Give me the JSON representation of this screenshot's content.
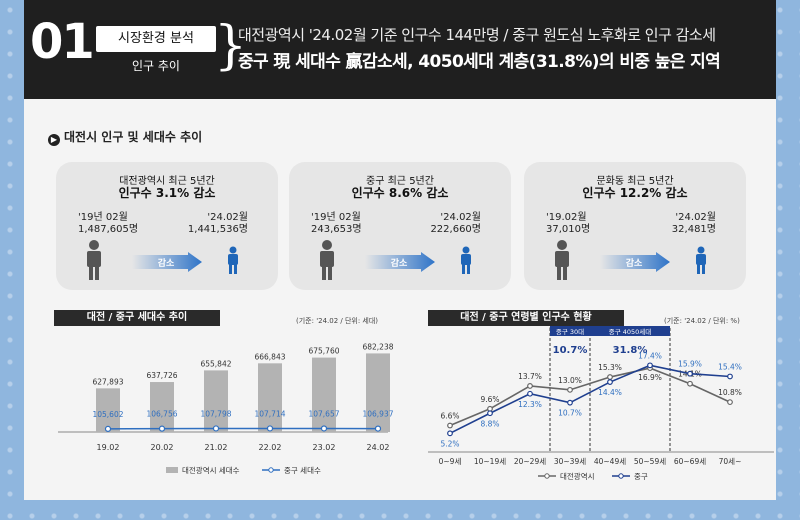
{
  "header": {
    "number": "01",
    "tag": "시장환경 분석",
    "tag_sub": "인구 추이",
    "subtitle": "대전광역시 '24.02월 기준 인구수 144만명 / 중구 원도심 노후화로 인구 감소세",
    "title": "중구 現 세대수 贏감소세, 4050세대 계층(31.8%)의 비중 높은 지역"
  },
  "section": {
    "title": "대전시 인구 및 세대수 추이"
  },
  "boxes": [
    {
      "t1": "대전광역시 최근 5년간",
      "t2": "인구수 3.1% 감소",
      "l1": "'19년 02월",
      "l2": "1,487,605명",
      "r1": "'24.02월",
      "r2": "1,441,536명",
      "arrow": "감소"
    },
    {
      "t1": "중구 최근 5년간",
      "t2": "인구수 8.6% 감소",
      "l1": "'19년 02월",
      "l2": "243,653명",
      "r1": "'24.02월",
      "r2": "222,660명",
      "arrow": "감소"
    },
    {
      "t1": "문화동 최근 5년간",
      "t2": "인구수 12.2% 감소",
      "l1": "'19.02월",
      "l2": "37,010명",
      "r1": "'24.02월",
      "r2": "32,481명",
      "arrow": "감소"
    }
  ],
  "colors": {
    "bar": "#b3b3b3",
    "line_blue": "#2f6fc0",
    "line_gray": "#666666",
    "dark_blue": "#1f3f8f",
    "figure_gray": "#555555",
    "figure_blue": "#1f66b8",
    "arrow_blue": "#2f74c8"
  },
  "chart_data": [
    {
      "type": "bar",
      "title": "대전 / 중구 세대수 추이",
      "unit_note": "(기준: '24.02 / 단위: 세대)",
      "categories": [
        "19.02",
        "20.02",
        "21.02",
        "22.02",
        "23.02",
        "24.02"
      ],
      "series": [
        {
          "name": "대전광역시 세대수",
          "kind": "bar",
          "values": [
            627893,
            637726,
            655842,
            666843,
            675760,
            682238
          ],
          "labels": [
            "627,893",
            "637,726",
            "655,842",
            "666,843",
            "675,760",
            "682,238"
          ]
        },
        {
          "name": "중구 세대수",
          "kind": "line",
          "values": [
            105602,
            106756,
            107798,
            107714,
            107657,
            106937
          ],
          "labels": [
            "105,602",
            "106,756",
            "107,798",
            "107,714",
            "107,657",
            "106,937"
          ]
        }
      ]
    },
    {
      "type": "line",
      "title": "대전 / 중구 연령별 인구수 현황",
      "unit_note": "(기준: '24.02 / 단위: %)",
      "categories": [
        "0~9세",
        "10~19세",
        "20~29세",
        "30~39세",
        "40~49세",
        "50~59세",
        "60~69세",
        "70세~"
      ],
      "series": [
        {
          "name": "대전광역시",
          "values": [
            6.6,
            9.6,
            13.7,
            13.0,
            15.3,
            16.9,
            14.1,
            10.8
          ],
          "labels": [
            "6.6%",
            "9.6%",
            "13.7%",
            "13.0%",
            "15.3%",
            "16.9%",
            "14.1%",
            "10.8%"
          ]
        },
        {
          "name": "중구",
          "values": [
            5.2,
            8.8,
            12.3,
            10.7,
            14.4,
            17.4,
            15.9,
            15.4
          ],
          "labels": [
            "5.2%",
            "8.8%",
            "12.3%",
            "10.7%",
            "14.4%",
            "17.4%",
            "15.9%",
            "15.4%"
          ]
        }
      ],
      "annotations": [
        {
          "label": "중구 30대",
          "value": "10.7%"
        },
        {
          "label": "중구 4050세대",
          "value": "31.8%"
        }
      ]
    }
  ]
}
